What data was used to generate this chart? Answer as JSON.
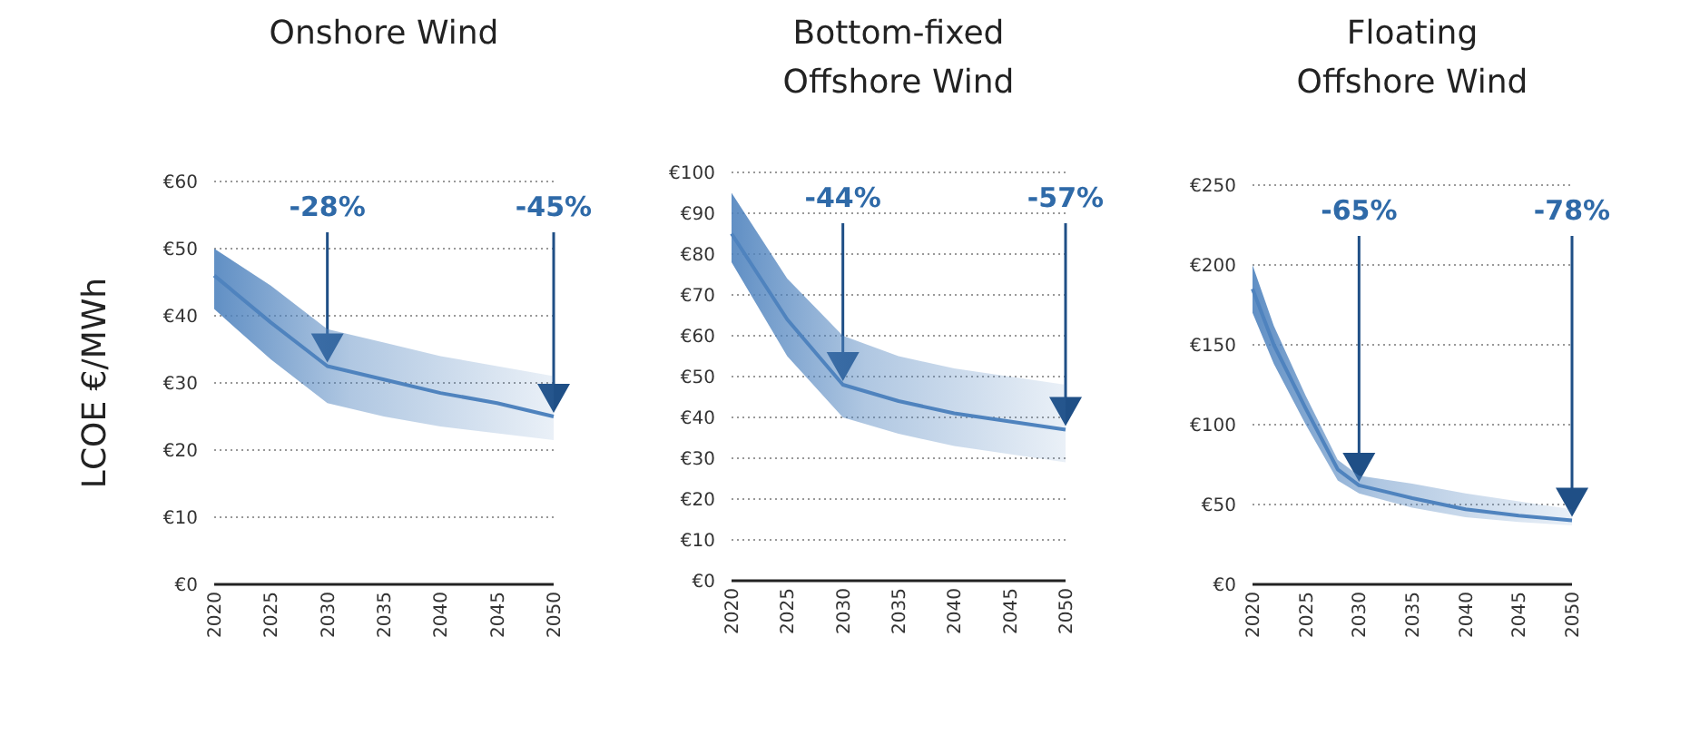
{
  "chart_data": [
    {
      "type": "line",
      "title": "Onshore Wind",
      "ylabel": "LCOE €/MWh",
      "x": [
        2020,
        2025,
        2030,
        2035,
        2040,
        2045,
        2050
      ],
      "series": [
        {
          "color": "#4f83be",
          "values": [
            46,
            39,
            32.5,
            30.5,
            28.5,
            27,
            25
          ],
          "lower": [
            41,
            33.5,
            27,
            25,
            23.5,
            22.5,
            21.5
          ],
          "upper": [
            50,
            44.5,
            38,
            36,
            34,
            32.5,
            31
          ]
        }
      ],
      "xlim": [
        2020,
        2050
      ],
      "xticks": [
        2020,
        2025,
        2030,
        2035,
        2040,
        2045,
        2050
      ],
      "ylim": [
        0,
        60
      ],
      "yticks": [
        {
          "value": 0,
          "label": "€0"
        },
        {
          "value": 10,
          "label": "€10"
        },
        {
          "value": 20,
          "label": "€20"
        },
        {
          "value": 30,
          "label": "€30"
        },
        {
          "value": 40,
          "label": "€40"
        },
        {
          "value": 50,
          "label": "€50"
        },
        {
          "value": 60,
          "label": "€60"
        }
      ],
      "grid": "y",
      "annotations": [
        "-28%",
        "-45%"
      ]
    },
    {
      "type": "line",
      "title": "Bottom-fixed\nOffshore Wind",
      "x": [
        2020,
        2025,
        2030,
        2035,
        2040,
        2045,
        2050
      ],
      "series": [
        {
          "color": "#4f83be",
          "values": [
            85,
            64,
            48,
            44,
            41,
            39,
            37
          ],
          "lower": [
            78,
            55,
            40,
            36,
            33,
            31,
            29
          ],
          "upper": [
            95,
            74,
            60,
            55,
            52,
            50,
            48
          ]
        }
      ],
      "xlim": [
        2020,
        2050
      ],
      "xticks": [
        2020,
        2025,
        2030,
        2035,
        2040,
        2045,
        2050
      ],
      "ylim": [
        0,
        100
      ],
      "yticks": [
        {
          "value": 0,
          "label": "€0"
        },
        {
          "value": 10,
          "label": "€10"
        },
        {
          "value": 20,
          "label": "€20"
        },
        {
          "value": 30,
          "label": "€30"
        },
        {
          "value": 40,
          "label": "€40"
        },
        {
          "value": 50,
          "label": "€50"
        },
        {
          "value": 60,
          "label": "€60"
        },
        {
          "value": 70,
          "label": "€70"
        },
        {
          "value": 80,
          "label": "€80"
        },
        {
          "value": 90,
          "label": "€90"
        },
        {
          "value": 100,
          "label": "€100"
        }
      ],
      "grid": "y",
      "annotations": [
        "-44%",
        "-57%"
      ]
    },
    {
      "type": "line",
      "title": "Floating\nOffshore Wind",
      "x": [
        2020,
        2022,
        2025,
        2028,
        2030,
        2035,
        2040,
        2045,
        2050
      ],
      "series": [
        {
          "color": "#4f83be",
          "values": [
            185,
            150,
            110,
            72,
            62,
            54,
            47,
            43,
            40
          ],
          "lower": [
            170,
            138,
            100,
            65,
            57,
            48,
            42,
            39,
            37
          ],
          "upper": [
            200,
            162,
            118,
            78,
            68,
            63,
            57,
            52,
            47
          ]
        }
      ],
      "xlim": [
        2020,
        2050
      ],
      "xticks": [
        2020,
        2025,
        2030,
        2035,
        2040,
        2045,
        2050
      ],
      "ylim": [
        0,
        250
      ],
      "yticks": [
        {
          "value": 0,
          "label": "€0"
        },
        {
          "value": 50,
          "label": "€50"
        },
        {
          "value": 100,
          "label": "€100"
        },
        {
          "value": 150,
          "label": "€150"
        },
        {
          "value": 200,
          "label": "€200"
        },
        {
          "value": 250,
          "label": "€250"
        }
      ],
      "grid": "y",
      "annotations": [
        "-65%",
        "-78%"
      ]
    }
  ]
}
